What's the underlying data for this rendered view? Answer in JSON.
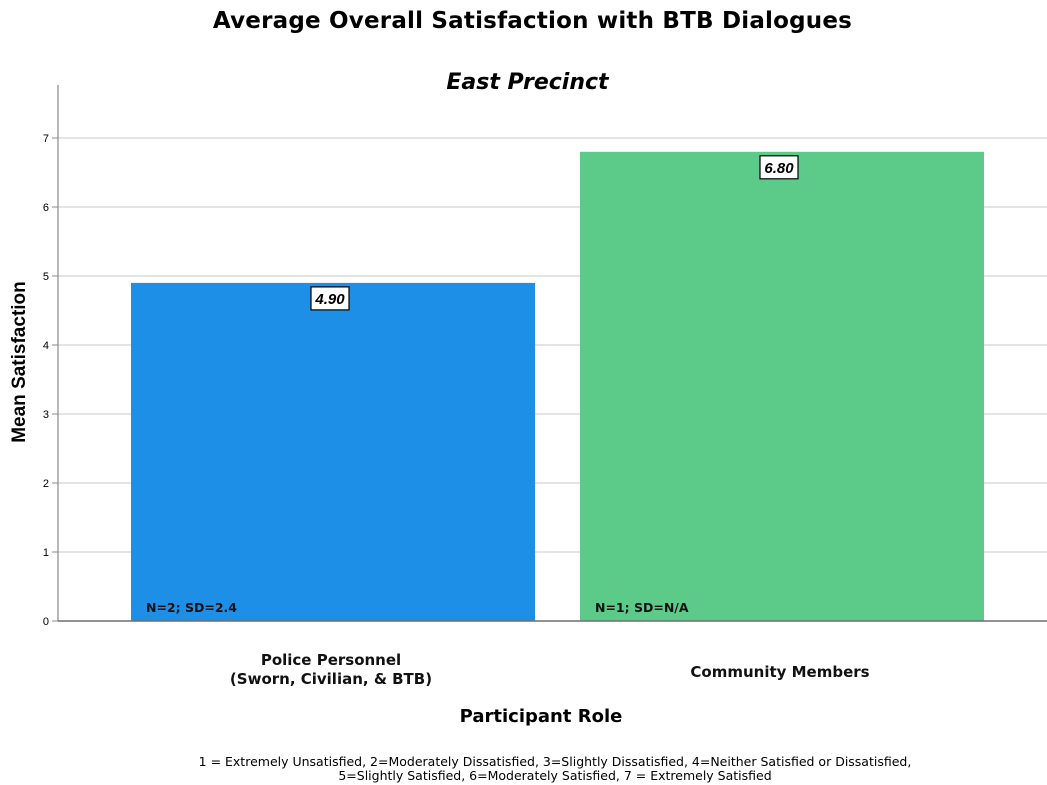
{
  "chart_data": {
    "type": "bar",
    "title": "Average Overall Satisfaction with BTB Dialogues",
    "subtitle": "East Precinct",
    "xlabel": "Participant Role",
    "ylabel": "Mean Satisfaction",
    "ylim": [
      0,
      7.8
    ],
    "yticks": [
      0,
      1,
      2,
      3,
      4,
      5,
      6,
      7
    ],
    "grid": true,
    "categories": [
      [
        "Police Personnel",
        "(Sworn, Civilian, & BTB)"
      ],
      [
        "Community Members"
      ]
    ],
    "values": [
      4.9,
      6.8
    ],
    "value_labels": [
      "4.90",
      "6.80"
    ],
    "bar_notes": [
      "N=2; SD=2.4",
      "N=1; SD=N/A"
    ],
    "colors": [
      "#1e8fe6",
      "#5ccb89"
    ],
    "footnote": [
      "1 = Extremely Unsatisfied,  2=Moderately Dissatisfied,  3=Slightly Dissatisfied,  4=Neither Satisfied or Dissatisfied,",
      "5=Slightly Satisfied, 6=Moderately Satisfied, 7 = Extremely Satisfied"
    ]
  }
}
